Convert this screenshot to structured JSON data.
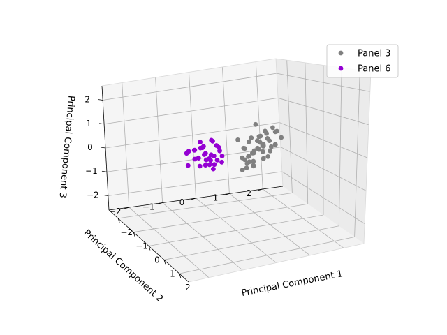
{
  "chart_data": {
    "type": "scatter",
    "projection": "3d",
    "title": "",
    "xlabel": "Principal Component 1",
    "ylabel": "Principal Component 2",
    "zlabel": "Principal Component 3",
    "xlim": [
      -2.6,
      2.6
    ],
    "ylim": [
      -2.6,
      2.6
    ],
    "zlim": [
      -2.6,
      2.6
    ],
    "xticks": [
      "−2",
      "−1",
      "0",
      "1",
      "2"
    ],
    "yticks": [
      "−2",
      "−1",
      "0",
      "1",
      "2"
    ],
    "zticks": [
      "−2",
      "−1",
      "0",
      "1",
      "2"
    ],
    "grid": true,
    "legend_position": "top-right",
    "series": [
      {
        "name": "Panel 3",
        "color": "#808080",
        "points": [
          [
            0.35,
            0.35,
            0.1
          ],
          [
            0.25,
            0.55,
            0.2
          ],
          [
            0.45,
            0.2,
            0.05
          ],
          [
            0.55,
            0.45,
            0.25
          ],
          [
            0.3,
            0.15,
            -0.1
          ],
          [
            0.4,
            0.65,
            0.3
          ],
          [
            0.2,
            0.3,
            -0.05
          ],
          [
            0.5,
            0.3,
            0.15
          ],
          [
            0.35,
            0.05,
            0.0
          ],
          [
            0.6,
            0.55,
            0.35
          ],
          [
            0.15,
            0.5,
            0.1
          ],
          [
            0.45,
            0.8,
            0.45
          ],
          [
            0.3,
            0.4,
            -0.2
          ],
          [
            0.55,
            0.1,
            -0.15
          ],
          [
            0.25,
            0.7,
            0.05
          ],
          [
            0.4,
            0.35,
            -0.3
          ],
          [
            0.65,
            0.25,
            0.2
          ],
          [
            0.2,
            0.2,
            0.25
          ],
          [
            0.5,
            0.6,
            -0.1
          ],
          [
            0.35,
            0.9,
            0.2
          ],
          [
            0.7,
            0.5,
            0.45
          ],
          [
            0.15,
            0.35,
            -0.25
          ],
          [
            0.45,
            0.05,
            0.35
          ],
          [
            0.6,
            0.75,
            0.15
          ],
          [
            0.3,
            0.6,
            0.4
          ],
          [
            0.4,
            0.15,
            -0.35
          ],
          [
            0.55,
            0.4,
            0.55
          ],
          [
            0.25,
            0.85,
            -0.15
          ],
          [
            0.65,
            0.65,
            0.6
          ],
          [
            0.35,
            0.25,
            0.5
          ],
          [
            0.5,
            0.95,
            0.3
          ],
          [
            0.2,
            0.45,
            -0.4
          ],
          [
            0.45,
            0.5,
            0.65
          ],
          [
            0.6,
            0.2,
            0.7
          ],
          [
            0.3,
            0.75,
            0.75
          ],
          [
            0.75,
            0.4,
            0.75
          ],
          [
            0.4,
            1.0,
            0.7
          ],
          [
            0.55,
            0.85,
            0.9
          ],
          [
            0.1,
            0.05,
            0.55
          ],
          [
            0.8,
            0.8,
            0.4
          ],
          [
            0.35,
            0.45,
            1.05
          ],
          [
            0.65,
            1.05,
            0.55
          ],
          [
            0.25,
            0.1,
            -0.45
          ],
          [
            0.9,
            0.5,
            0.85
          ],
          [
            0.7,
            0.9,
            0.8
          ]
        ]
      },
      {
        "name": "Panel 6",
        "color": "#9400d3",
        "points": [
          [
            -0.45,
            -0.5,
            -0.2
          ],
          [
            -0.55,
            -0.35,
            -0.1
          ],
          [
            -0.35,
            -0.7,
            -0.3
          ],
          [
            -0.65,
            -0.55,
            0.0
          ],
          [
            -0.4,
            -0.25,
            0.1
          ],
          [
            -0.75,
            -0.4,
            -0.25
          ],
          [
            -0.3,
            -0.55,
            0.05
          ],
          [
            -0.6,
            -0.75,
            -0.4
          ],
          [
            -0.5,
            -0.15,
            -0.35
          ],
          [
            -0.85,
            -0.6,
            0.15
          ],
          [
            -0.25,
            -0.4,
            -0.15
          ],
          [
            -0.7,
            -0.2,
            0.2
          ],
          [
            -0.45,
            -0.85,
            -0.05
          ],
          [
            -0.95,
            -0.45,
            -0.15
          ],
          [
            -0.35,
            -0.3,
            0.25
          ],
          [
            -0.55,
            -0.65,
            0.3
          ],
          [
            -0.8,
            -0.8,
            -0.2
          ],
          [
            -0.2,
            -0.65,
            -0.25
          ],
          [
            -0.65,
            -0.3,
            -0.45
          ],
          [
            -1.0,
            -0.7,
            0.05
          ],
          [
            -0.4,
            -0.45,
            -0.5
          ],
          [
            -0.9,
            -0.25,
            0.35
          ],
          [
            -0.6,
            -0.9,
            0.2
          ],
          [
            -0.3,
            -0.8,
            0.35
          ],
          [
            -1.1,
            -0.55,
            -0.3
          ],
          [
            -0.75,
            -0.65,
            0.4
          ],
          [
            -0.5,
            -0.4,
            0.45
          ],
          [
            -0.85,
            -0.95,
            0.1
          ],
          [
            -1.2,
            -0.85,
            -0.1
          ],
          [
            -0.15,
            -0.3,
            0.0
          ],
          [
            -0.7,
            -1.05,
            -0.35
          ],
          [
            -1.05,
            -0.35,
            -0.4
          ]
        ]
      }
    ]
  }
}
